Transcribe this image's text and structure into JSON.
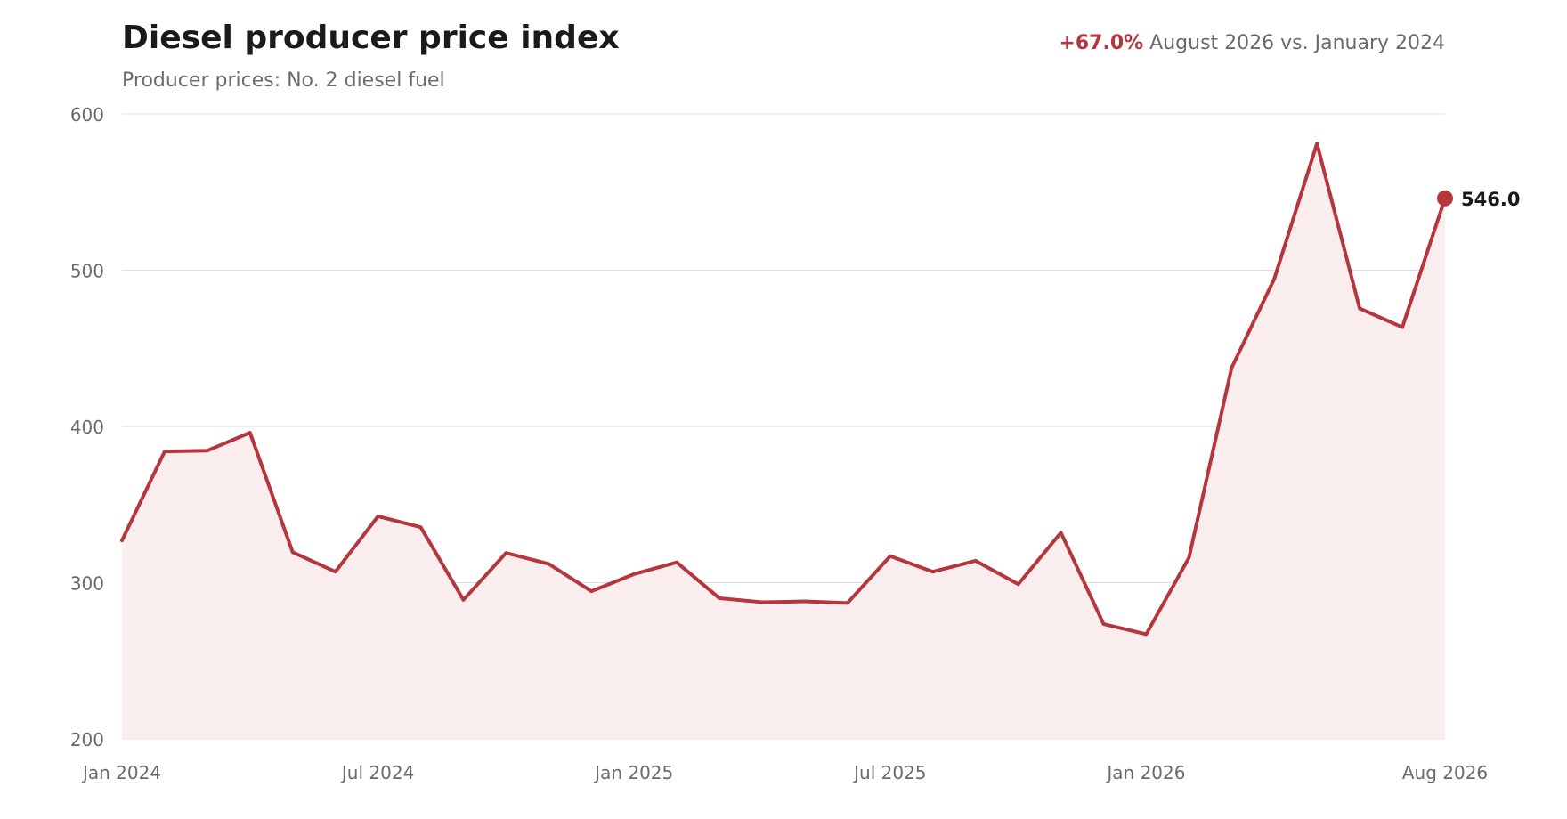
{
  "header": {
    "title": "Diesel producer price index",
    "subtitle": "Producer prices: No. 2 diesel fuel",
    "change_value": "+67.0%",
    "change_text": " August 2026 vs. January 2024"
  },
  "colors": {
    "line": "#b5373d",
    "area": "#f9eded",
    "grid": "#dddddd",
    "tick_text": "#6b6b6b",
    "label_text": "#1a1a1a"
  },
  "chart_data": {
    "type": "area",
    "x_labels": [
      "Jan 2024",
      "Jul 2024",
      "Jan 2025",
      "Jul 2025",
      "Jan 2026",
      "Aug 2026"
    ],
    "x_label_months": [
      0,
      6,
      12,
      18,
      24,
      31
    ],
    "x": [
      "2024-01",
      "2024-02",
      "2024-03",
      "2024-04",
      "2024-05",
      "2024-06",
      "2024-07",
      "2024-08",
      "2024-09",
      "2024-10",
      "2024-11",
      "2024-12",
      "2025-01",
      "2025-02",
      "2025-03",
      "2025-04",
      "2025-05",
      "2025-06",
      "2025-07",
      "2025-08",
      "2025-09",
      "2025-10",
      "2025-11",
      "2025-12",
      "2026-01",
      "2026-02",
      "2026-03",
      "2026-04",
      "2026-05",
      "2026-06",
      "2026-07",
      "2026-08"
    ],
    "series": [
      {
        "values": [
          327,
          384,
          384.5,
          396,
          319.5,
          307,
          342.5,
          335.5,
          289,
          319,
          312,
          294.5,
          305.5,
          313,
          290,
          287.5,
          288,
          287,
          317,
          307,
          314,
          299,
          332,
          273.5,
          267,
          316,
          437.5,
          494.5,
          581,
          475.5,
          463.5,
          546
        ]
      }
    ],
    "ylim": [
      200,
      600
    ],
    "yticks": [
      200,
      300,
      400,
      500,
      600
    ],
    "grid": true,
    "end_label": "546.0"
  }
}
